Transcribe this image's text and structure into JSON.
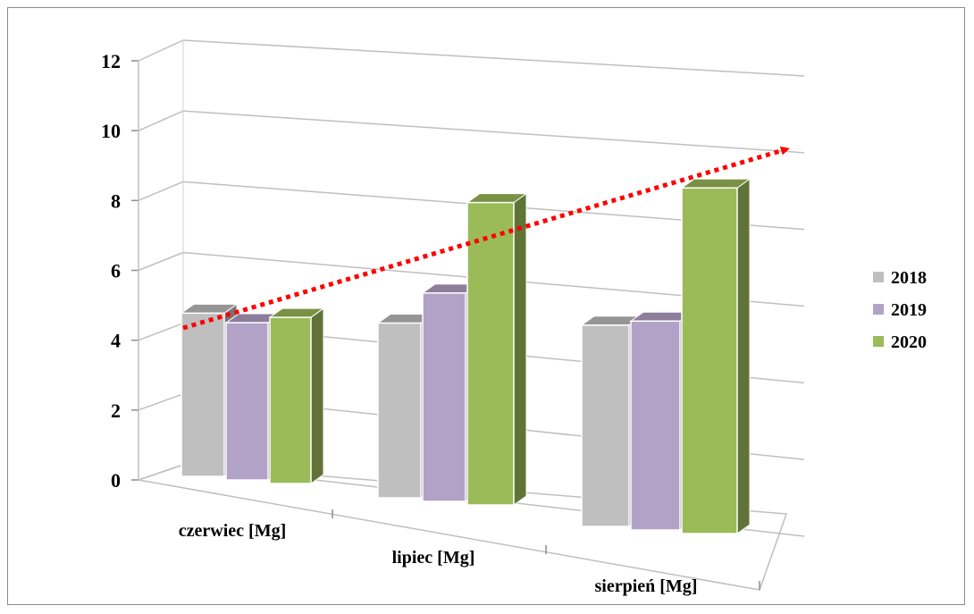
{
  "chart_data": {
    "type": "bar",
    "title": "",
    "xlabel": "",
    "ylabel": "",
    "categories": [
      "czerwiec [Mg]",
      "lipiec [Mg]",
      "sierpień [Mg]"
    ],
    "series": [
      {
        "name": "2018",
        "values": [
          5.5,
          5.2,
          5.3
        ],
        "color": "#bfbfbf"
      },
      {
        "name": "2019",
        "values": [
          5.3,
          6.2,
          5.5
        ],
        "color": "#b3a2c7"
      },
      {
        "name": "2020",
        "values": [
          5.6,
          9.0,
          9.1
        ],
        "color": "#9bbb59"
      }
    ],
    "ylim": [
      0,
      12
    ],
    "yticks": [
      "0",
      "2",
      "4",
      "6",
      "8",
      "10",
      "12"
    ],
    "grid": true,
    "legend_position": "right",
    "trend_arrow": {
      "color": "#ff0000",
      "style": "dotted"
    }
  }
}
